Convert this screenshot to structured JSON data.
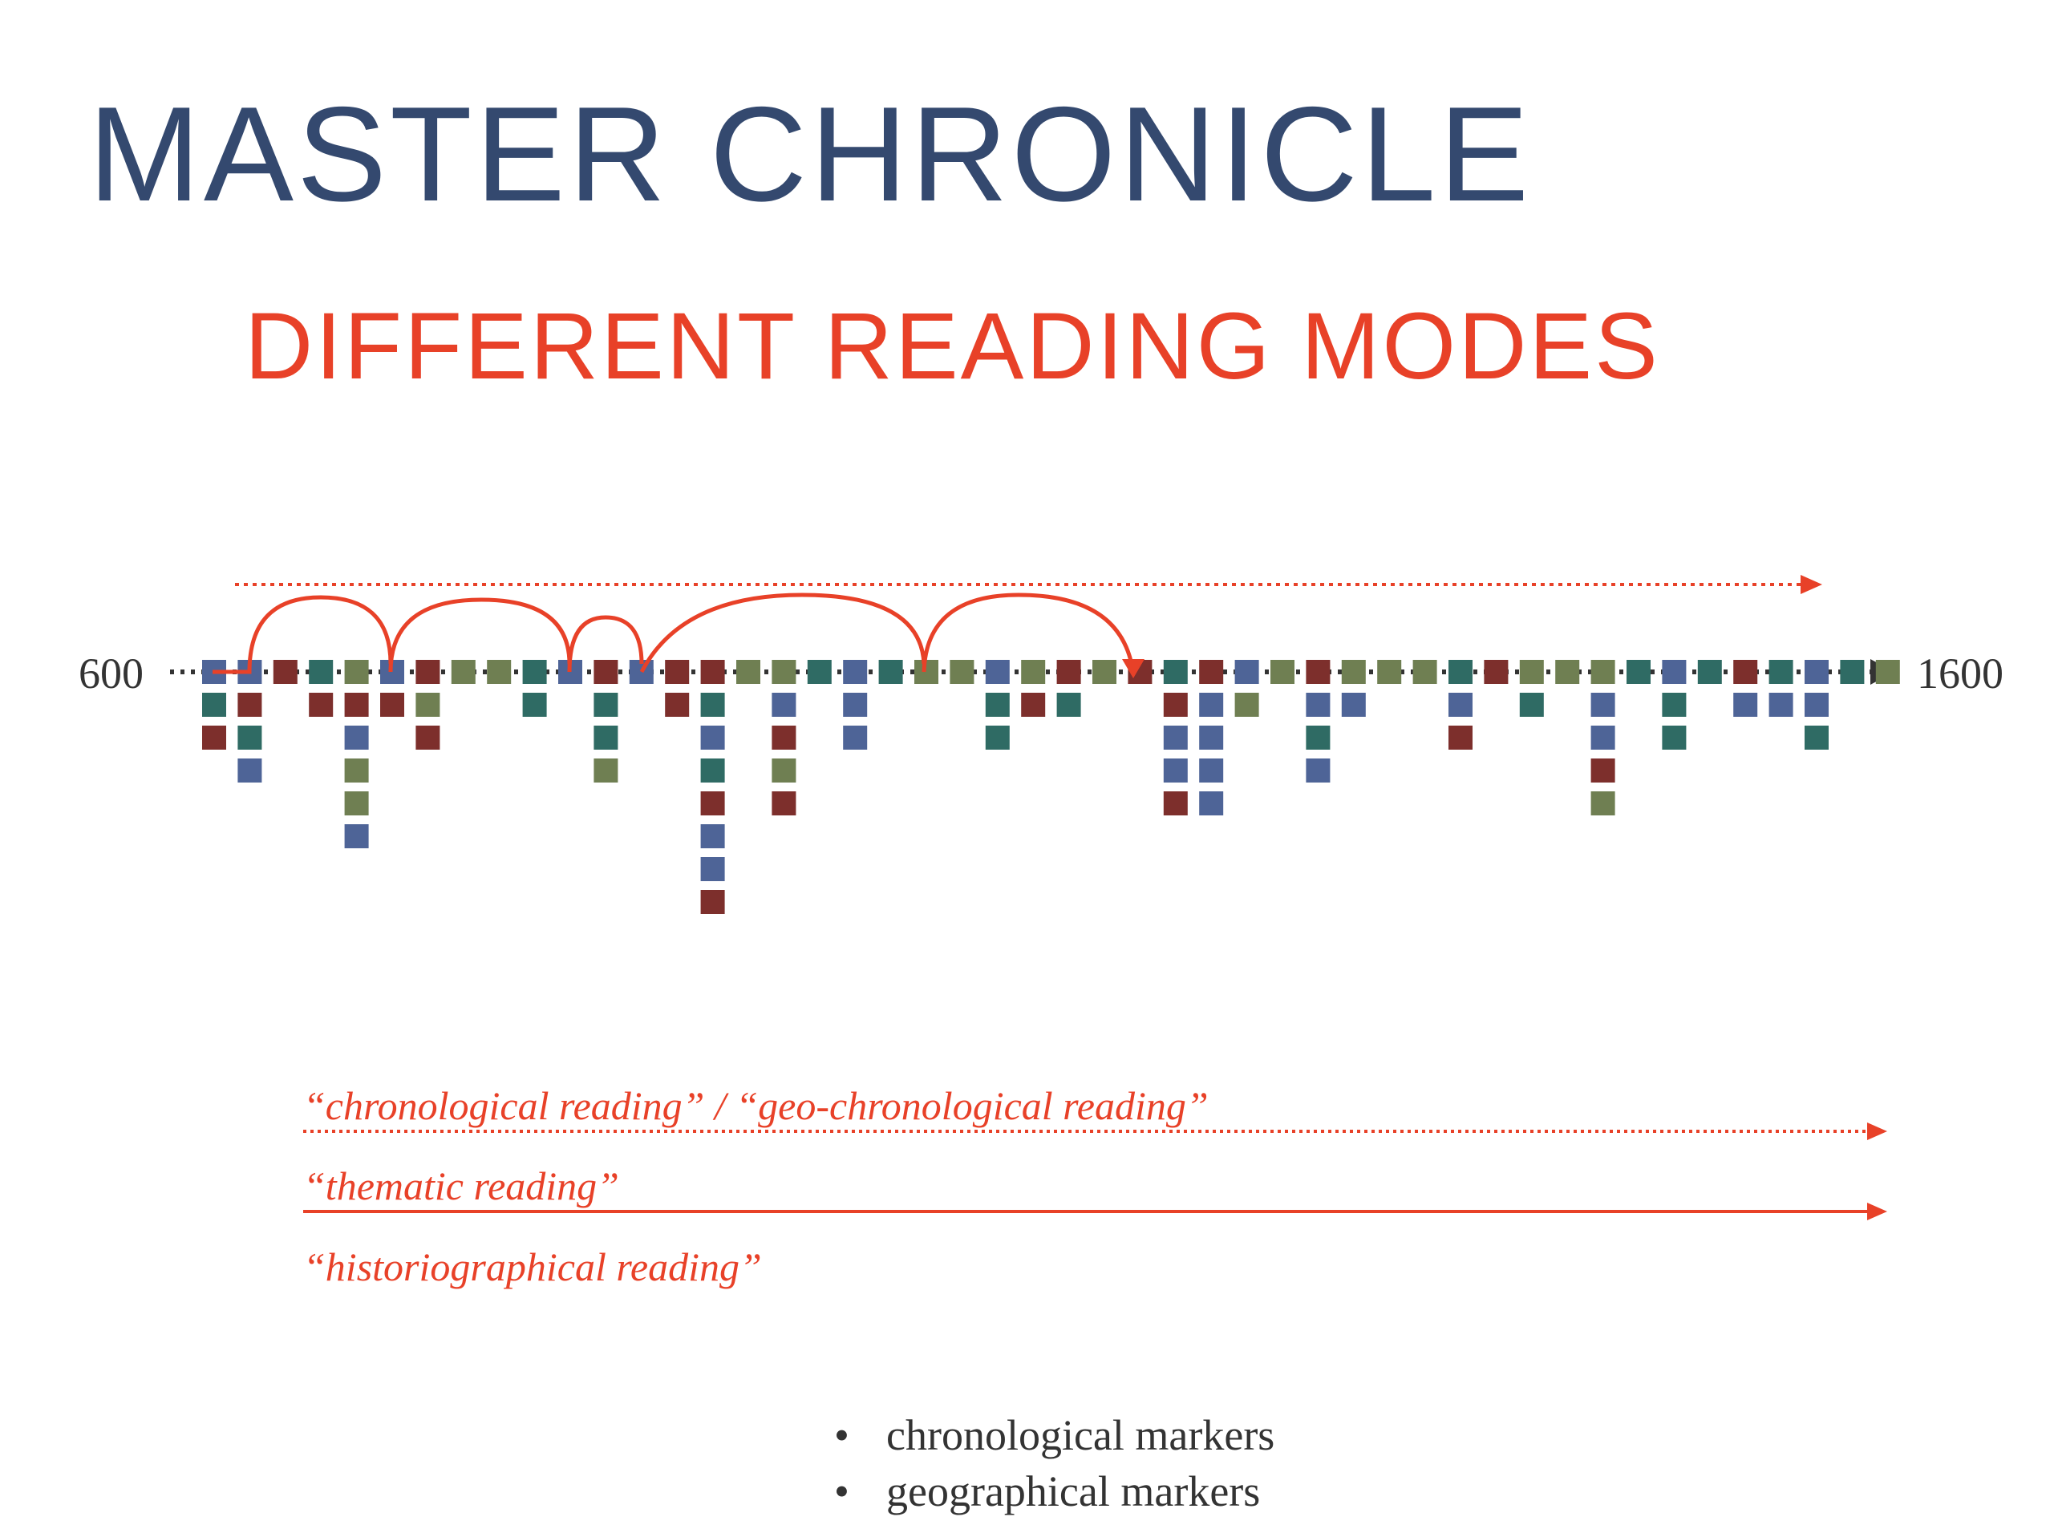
{
  "title": "MASTER CHRONICLE",
  "subtitle": "DIFFERENT READING MODES",
  "timeline": {
    "start_label": "600",
    "end_label": "1600"
  },
  "reading_modes": [
    "“chronological reading” / “geo-chronological reading”",
    "“thematic reading”",
    "“historiographical reading”"
  ],
  "bullets": [
    "chronological markers",
    "geographical markers"
  ],
  "colors": {
    "title": "#34496f",
    "accent": "#e84128",
    "axis": "#333333",
    "marker_blue": "#4e6497",
    "marker_teal": "#2f6b64",
    "marker_red": "#7d2f2c",
    "marker_olive": "#6f7f52"
  },
  "marker_columns": [
    [
      "b",
      "t",
      "r"
    ],
    [
      "b",
      "r",
      "t",
      "b"
    ],
    [
      "r"
    ],
    [
      "t",
      "r"
    ],
    [
      "o",
      "r",
      "b",
      "o",
      "o",
      "b"
    ],
    [
      "b",
      "r"
    ],
    [
      "r",
      "o",
      "r"
    ],
    [
      "o"
    ],
    [
      "o"
    ],
    [
      "t",
      "t"
    ],
    [
      "b"
    ],
    [
      "r",
      "t",
      "t",
      "o"
    ],
    [
      "b"
    ],
    [
      "r",
      "r"
    ],
    [
      "r",
      "t",
      "b",
      "t",
      "r",
      "b",
      "b",
      "r"
    ],
    [
      "o"
    ],
    [
      "o",
      "b",
      "r",
      "o",
      "r"
    ],
    [
      "t"
    ],
    [
      "b",
      "b",
      "b"
    ],
    [
      "t"
    ],
    [
      "o"
    ],
    [
      "o"
    ],
    [
      "b",
      "t",
      "t"
    ],
    [
      "o",
      "r"
    ],
    [
      "r",
      "t"
    ],
    [
      "o"
    ],
    [
      "r"
    ],
    [
      "t",
      "r",
      "b",
      "b",
      "r"
    ],
    [
      "r",
      "b",
      "b",
      "b",
      "b"
    ],
    [
      "b",
      "o"
    ],
    [
      "o"
    ],
    [
      "r",
      "b",
      "t",
      "b"
    ],
    [
      "o",
      "b"
    ],
    [
      "o"
    ],
    [
      "o"
    ],
    [
      "t",
      "b",
      "r"
    ],
    [
      "r"
    ],
    [
      "o",
      "t"
    ],
    [
      "o"
    ],
    [
      "o",
      "b",
      "b",
      "r",
      "o"
    ],
    [
      "t"
    ],
    [
      "b",
      "t",
      "t"
    ],
    [
      "t"
    ],
    [
      "r",
      "b"
    ],
    [
      "t",
      "b"
    ],
    [
      "b",
      "b",
      "t"
    ],
    [
      "t"
    ],
    [
      "o"
    ]
  ]
}
